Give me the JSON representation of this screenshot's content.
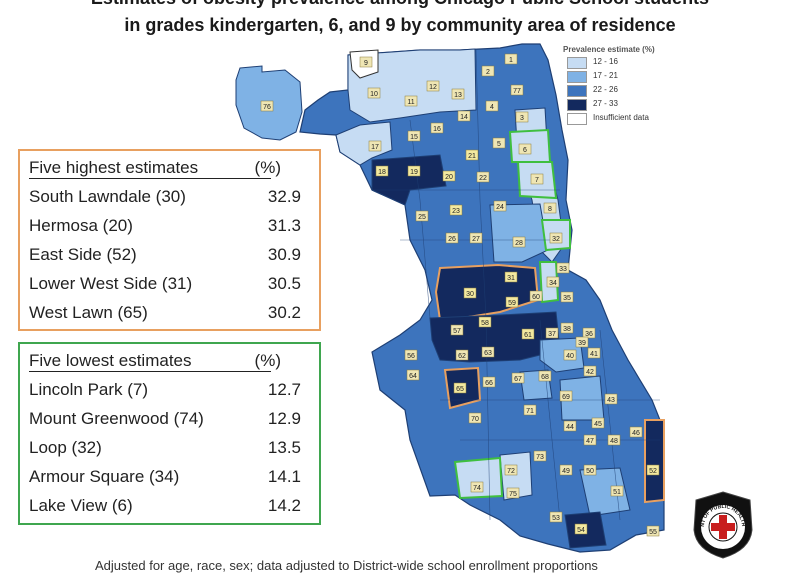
{
  "title": {
    "line1": "Estimates of obesity prevalence among Chicago Public School students",
    "line2": "in grades kindergarten, 6, and 9 by community area of residence"
  },
  "legend": {
    "title": "Prevalence estimate (%)",
    "items": [
      {
        "label": "12 - 16",
        "color": "#c6dcf3"
      },
      {
        "label": "17 - 21",
        "color": "#7fb2e5"
      },
      {
        "label": "22 - 26",
        "color": "#3d74bd"
      },
      {
        "label": "27 - 33",
        "color": "#13295e"
      },
      {
        "label": "Insufficient data",
        "color": "#ffffff"
      }
    ]
  },
  "highest": {
    "header": "Five highest estimates",
    "pct_header": "(%)",
    "rows": [
      {
        "name": "South Lawndale (30)",
        "value": "32.9"
      },
      {
        "name": "Hermosa (20)",
        "value": "31.3"
      },
      {
        "name": "East Side (52)",
        "value": "30.9"
      },
      {
        "name": "Lower West Side (31)",
        "value": "30.5"
      },
      {
        "name": "West Lawn (65)",
        "value": "30.2"
      }
    ]
  },
  "lowest": {
    "header": "Five lowest estimates",
    "pct_header": "(%)",
    "rows": [
      {
        "name": "Lincoln Park (7)",
        "value": "12.7"
      },
      {
        "name": "Mount Greenwood (74)",
        "value": "12.9"
      },
      {
        "name": "Loop (32)",
        "value": "13.5"
      },
      {
        "name": "Armour Square (34)",
        "value": "14.1"
      },
      {
        "name": "Lake View (6)",
        "value": "14.2"
      }
    ]
  },
  "areas": [
    {
      "n": "9",
      "c": 0
    },
    {
      "n": "10",
      "c": 0
    },
    {
      "n": "12",
      "c": 0
    },
    {
      "n": "2",
      "c": 2
    },
    {
      "n": "1",
      "c": 2
    },
    {
      "n": "11",
      "c": 0
    },
    {
      "n": "13",
      "c": 1
    },
    {
      "n": "77",
      "c": 2
    },
    {
      "n": "76",
      "c": 1
    },
    {
      "n": "14",
      "c": 2
    },
    {
      "n": "4",
      "c": 1
    },
    {
      "n": "3",
      "c": 1
    },
    {
      "n": "16",
      "c": 2
    },
    {
      "n": "15",
      "c": 2
    },
    {
      "n": "5",
      "c": 1
    },
    {
      "n": "6",
      "c": 0
    },
    {
      "n": "17",
      "c": 1
    },
    {
      "n": "21",
      "c": 3
    },
    {
      "n": "18",
      "c": 3
    },
    {
      "n": "19",
      "c": 3
    },
    {
      "n": "20",
      "c": 3
    },
    {
      "n": "22",
      "c": 2
    },
    {
      "n": "7",
      "c": 0
    },
    {
      "n": "25",
      "c": 2
    },
    {
      "n": "23",
      "c": 3
    },
    {
      "n": "24",
      "c": 2
    },
    {
      "n": "8",
      "c": 1
    },
    {
      "n": "26",
      "c": 2
    },
    {
      "n": "27",
      "c": 2
    },
    {
      "n": "28",
      "c": 1
    },
    {
      "n": "32",
      "c": 0
    },
    {
      "n": "31",
      "c": 3
    },
    {
      "n": "33",
      "c": 1
    },
    {
      "n": "30",
      "c": 3
    },
    {
      "n": "59",
      "c": 3
    },
    {
      "n": "60",
      "c": 2
    },
    {
      "n": "34",
      "c": 0
    },
    {
      "n": "35",
      "c": 1
    },
    {
      "n": "57",
      "c": 2
    },
    {
      "n": "58",
      "c": 3
    },
    {
      "n": "61",
      "c": 3
    },
    {
      "n": "38",
      "c": 2
    },
    {
      "n": "37",
      "c": 2
    },
    {
      "n": "36",
      "c": 1
    },
    {
      "n": "62",
      "c": 2
    },
    {
      "n": "63",
      "c": 2
    },
    {
      "n": "39",
      "c": 1
    },
    {
      "n": "40",
      "c": 2
    },
    {
      "n": "41",
      "c": 1
    },
    {
      "n": "56",
      "c": 2
    },
    {
      "n": "64",
      "c": 2
    },
    {
      "n": "65",
      "c": 3
    },
    {
      "n": "66",
      "c": 2
    },
    {
      "n": "67",
      "c": 2
    },
    {
      "n": "68",
      "c": 2
    },
    {
      "n": "42",
      "c": 2
    },
    {
      "n": "69",
      "c": 2
    },
    {
      "n": "43",
      "c": 2
    },
    {
      "n": "70",
      "c": 2
    },
    {
      "n": "71",
      "c": 2
    },
    {
      "n": "44",
      "c": 2
    },
    {
      "n": "45",
      "c": 2
    },
    {
      "n": "47",
      "c": 1
    },
    {
      "n": "48",
      "c": 2
    },
    {
      "n": "46",
      "c": 2
    },
    {
      "n": "73",
      "c": 2
    },
    {
      "n": "49",
      "c": 2
    },
    {
      "n": "50",
      "c": 2
    },
    {
      "n": "52",
      "c": 3
    },
    {
      "n": "72",
      "c": 0
    },
    {
      "n": "74",
      "c": 0
    },
    {
      "n": "75",
      "c": 1
    },
    {
      "n": "51",
      "c": 2
    },
    {
      "n": "53",
      "c": 2
    },
    {
      "n": "54",
      "c": 3
    },
    {
      "n": "55",
      "c": 2
    }
  ],
  "badge_text": "DEPARTMENT OF PUBLIC HEALTH · CHICAGO",
  "footer": "Adjusted for age, race, sex; data adjusted to District-wide school enrollment proportions"
}
